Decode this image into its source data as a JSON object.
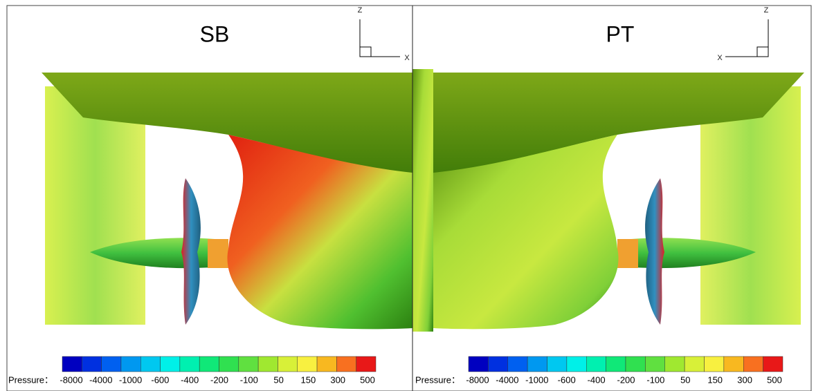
{
  "panels": [
    {
      "title": "SB",
      "axes": {
        "z": "Z",
        "x": "X"
      },
      "colorbar": {
        "label": "Pressure：",
        "ticks": [
          -8000,
          -4000,
          -1000,
          -600,
          -400,
          -200,
          -100,
          50,
          150,
          300,
          500
        ]
      }
    },
    {
      "title": "PT",
      "axes": {
        "z": "Z",
        "x": "X"
      },
      "colorbar": {
        "label": "Pressure：",
        "ticks": [
          -8000,
          -4000,
          -1000,
          -600,
          -400,
          -200,
          -100,
          50,
          150,
          300,
          500
        ]
      }
    }
  ],
  "colorbar_colors": [
    "#0000c0",
    "#0030e0",
    "#0060f0",
    "#0098f0",
    "#00c8f0",
    "#00f0e8",
    "#00f0b0",
    "#10e878",
    "#30e050",
    "#60e040",
    "#a0e830",
    "#d8f038",
    "#f8f040",
    "#f8b820",
    "#f87020",
    "#e81818"
  ]
}
